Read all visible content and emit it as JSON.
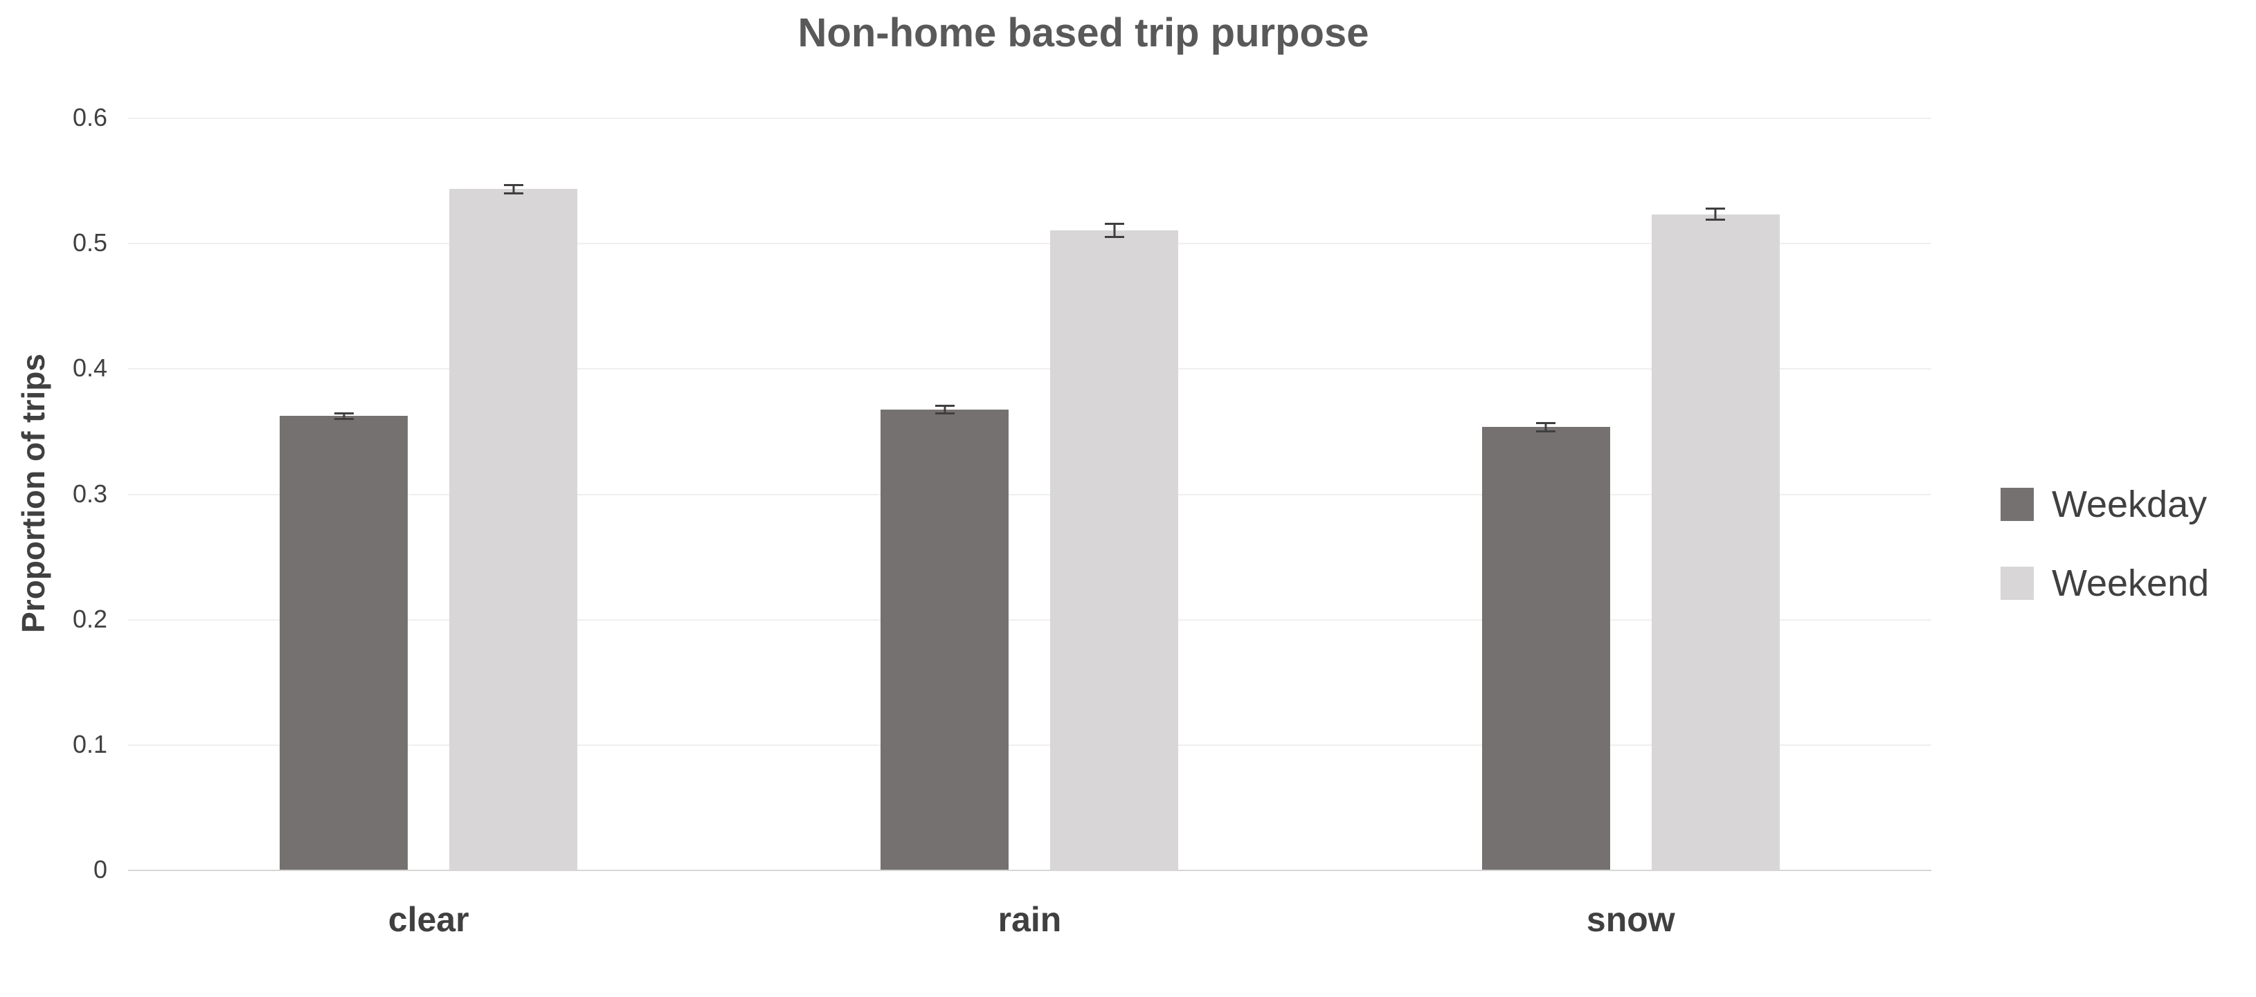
{
  "chart_data": {
    "type": "bar",
    "title": "Non-home based trip purpose",
    "xlabel": "",
    "ylabel": "Proportion of trips",
    "categories": [
      "clear",
      "rain",
      "snow"
    ],
    "series": [
      {
        "name": "Weekday",
        "color": "#767171",
        "values": [
          0.362,
          0.367,
          0.353
        ],
        "errors": [
          0.003,
          0.004,
          0.004
        ]
      },
      {
        "name": "Weekend",
        "color": "#d8d6d6",
        "values": [
          0.543,
          0.51,
          0.523
        ],
        "errors": [
          0.004,
          0.006,
          0.005
        ]
      }
    ],
    "ylim": [
      0,
      0.6
    ],
    "ytick_labels": [
      "0",
      "0.1",
      "0.2",
      "0.3",
      "0.4",
      "0.5",
      "0.6"
    ],
    "grid": true,
    "legend_position": "right",
    "error_bar_color": "#3f3f3f"
  }
}
